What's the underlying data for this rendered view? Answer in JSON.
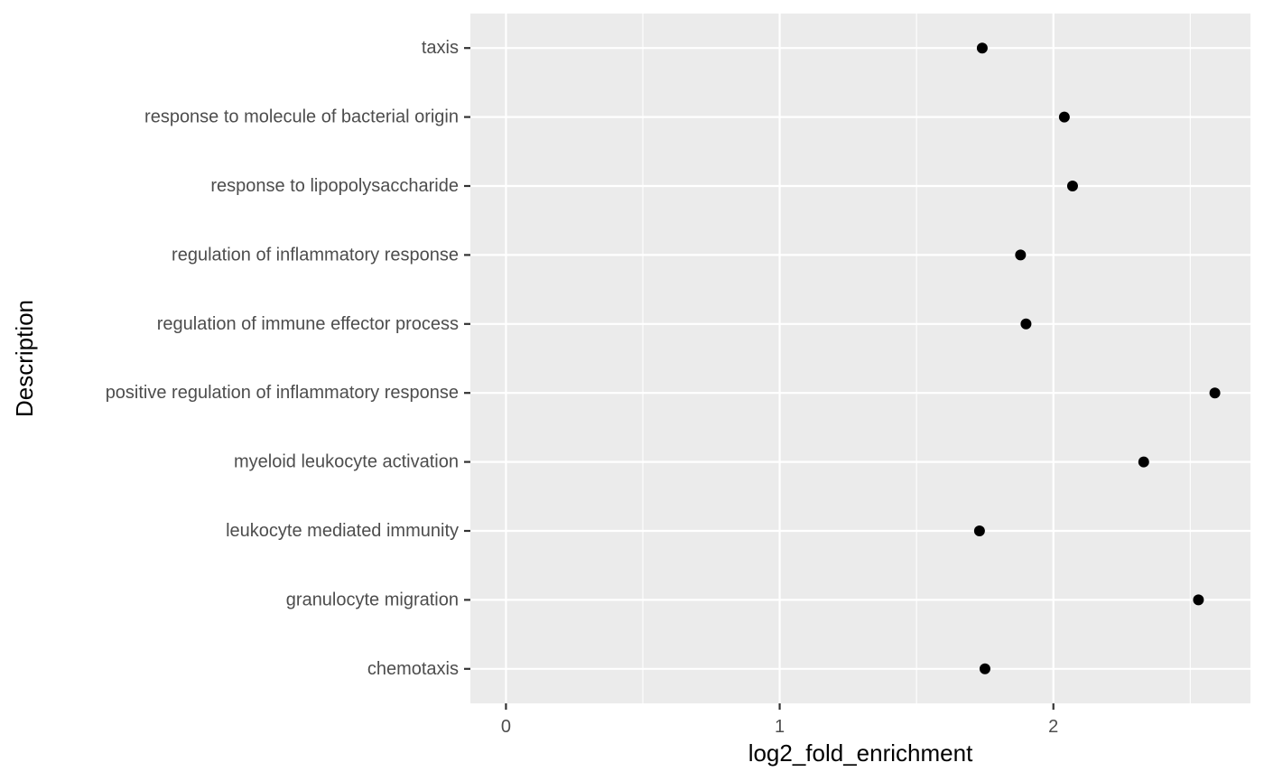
{
  "chart_data": {
    "type": "scatter",
    "xlabel": "log2_fold_enrichment",
    "ylabel": "Description",
    "xlim": [
      -0.13,
      2.72
    ],
    "x_ticks": [
      0,
      1,
      2
    ],
    "x_tick_labels": [
      "0",
      "1",
      "2"
    ],
    "x_minor_ticks": [
      0.5,
      1.5,
      2.5
    ],
    "grid": true,
    "legend": "none",
    "panel_background": "#ebebeb",
    "grid_color": "#ffffff",
    "point_color": "#000000",
    "categories": [
      "chemotaxis",
      "granulocyte migration",
      "leukocyte mediated immunity",
      "myeloid leukocyte activation",
      "positive regulation of inflammatory response",
      "regulation of immune effector process",
      "regulation of inflammatory response",
      "response to lipopolysaccharide",
      "response to molecule of bacterial origin",
      "taxis"
    ],
    "values": [
      1.75,
      2.53,
      1.73,
      2.33,
      2.59,
      1.9,
      1.88,
      2.07,
      2.04,
      1.74
    ]
  }
}
